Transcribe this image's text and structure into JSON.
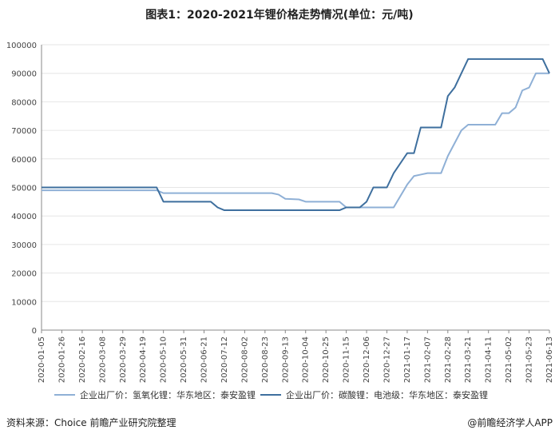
{
  "title": "图表1：2020-2021年锂价格走势情况(单位：元/吨)",
  "footer": {
    "source": "资料来源：Choice 前瞻产业研究院整理",
    "brand": "@前瞻经济学人APP"
  },
  "colors": {
    "series1": "#8fb0d6",
    "series2": "#3e6f9e",
    "axis": "#888888",
    "grid": "#e6e6e6"
  },
  "chart_data": {
    "type": "line",
    "title": "图表1：2020-2021年锂价格走势情况(单位：元/吨)",
    "xlabel": "",
    "ylabel": "",
    "ylim": [
      0,
      100000
    ],
    "yticks": [
      "0",
      "10000",
      "20000",
      "30000",
      "40000",
      "50000",
      "60000",
      "70000",
      "80000",
      "90000",
      "100000"
    ],
    "x_labels": [
      "2020-01-05",
      "2020-01-26",
      "2020-02-16",
      "2020-03-08",
      "2020-03-29",
      "2020-04-19",
      "2020-05-10",
      "2020-05-31",
      "2020-06-21",
      "2020-07-12",
      "2020-08-02",
      "2020-08-23",
      "2020-09-13",
      "2020-10-04",
      "2020-10-25",
      "2020-11-15",
      "2020-12-06",
      "2020-12-27",
      "2021-01-17",
      "2021-02-07",
      "2021-02-28",
      "2021-03-21",
      "2021-04-11",
      "2021-05-02",
      "2021-05-23",
      "2021-06-13"
    ],
    "legend_position": "bottom",
    "series": [
      {
        "name": "企业出厂价：氢氧化锂：华东地区：泰安盈锂",
        "points": [
          [
            "2020-01-05",
            49000
          ],
          [
            "2020-05-03",
            49000
          ],
          [
            "2020-05-10",
            48000
          ],
          [
            "2020-08-30",
            48000
          ],
          [
            "2020-09-06",
            47500
          ],
          [
            "2020-09-13",
            46000
          ],
          [
            "2020-09-27",
            45800
          ],
          [
            "2020-10-04",
            45000
          ],
          [
            "2020-11-08",
            45000
          ],
          [
            "2020-11-15",
            43000
          ],
          [
            "2021-01-03",
            43000
          ],
          [
            "2021-01-17",
            51000
          ],
          [
            "2021-01-24",
            54000
          ],
          [
            "2021-01-31",
            54500
          ],
          [
            "2021-02-07",
            55000
          ],
          [
            "2021-02-21",
            55000
          ],
          [
            "2021-02-28",
            61000
          ],
          [
            "2021-03-14",
            70000
          ],
          [
            "2021-03-21",
            72000
          ],
          [
            "2021-04-18",
            72000
          ],
          [
            "2021-04-25",
            76000
          ],
          [
            "2021-05-02",
            76000
          ],
          [
            "2021-05-09",
            78000
          ],
          [
            "2021-05-16",
            84000
          ],
          [
            "2021-05-23",
            85000
          ],
          [
            "2021-05-30",
            90000
          ],
          [
            "2021-06-13",
            90000
          ]
        ]
      },
      {
        "name": "企业出厂价：碳酸锂：电池级：华东地区：泰安盈锂",
        "points": [
          [
            "2020-01-05",
            50000
          ],
          [
            "2020-05-03",
            50000
          ],
          [
            "2020-05-10",
            45000
          ],
          [
            "2020-06-28",
            45000
          ],
          [
            "2020-07-05",
            43000
          ],
          [
            "2020-07-12",
            42000
          ],
          [
            "2020-11-08",
            42000
          ],
          [
            "2020-11-15",
            43000
          ],
          [
            "2020-11-29",
            43000
          ],
          [
            "2020-12-06",
            45000
          ],
          [
            "2020-12-13",
            50000
          ],
          [
            "2020-12-27",
            50000
          ],
          [
            "2021-01-03",
            55000
          ],
          [
            "2021-01-17",
            62000
          ],
          [
            "2021-01-24",
            62000
          ],
          [
            "2021-01-31",
            71000
          ],
          [
            "2021-02-21",
            71000
          ],
          [
            "2021-02-28",
            82000
          ],
          [
            "2021-03-07",
            85000
          ],
          [
            "2021-03-21",
            95000
          ],
          [
            "2021-06-06",
            95000
          ],
          [
            "2021-06-13",
            90000
          ]
        ]
      }
    ]
  }
}
